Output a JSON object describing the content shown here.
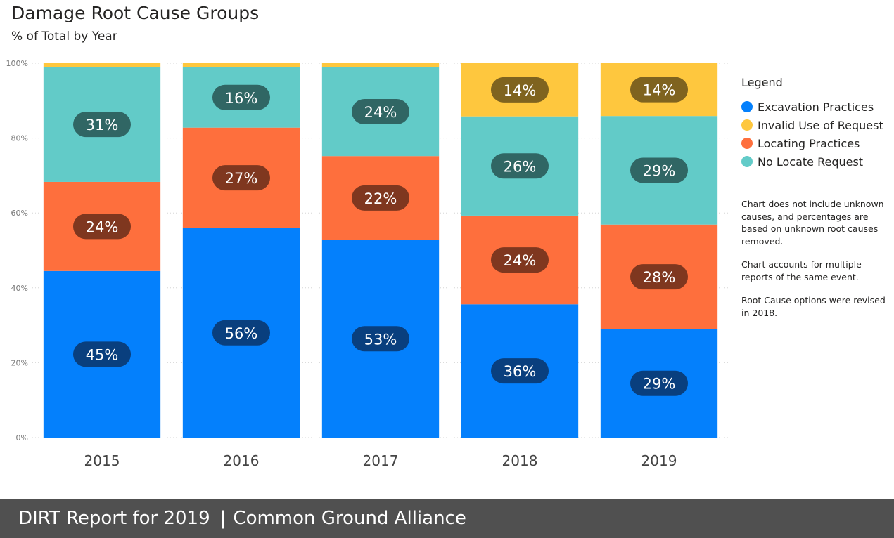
{
  "header": {
    "title": "Damage Root Cause Groups",
    "subtitle": "% of Total by Year"
  },
  "legend": {
    "title": "Legend",
    "items": [
      {
        "label": "Excavation Practices",
        "color": "#0480fc"
      },
      {
        "label": "Invalid Use of Request",
        "color": "#fec73e"
      },
      {
        "label": "Locating Practices",
        "color": "#fe6f3d"
      },
      {
        "label": "No Locate Request",
        "color": "#62cbc8"
      }
    ]
  },
  "notes": [
    "Chart does not include unknown causes, and percentages are based on unknown root causes removed.",
    "Chart accounts for multiple reports of the same event.",
    "Root Cause options were revised in 2018."
  ],
  "footer": {
    "report": "DIRT Report for 2019",
    "separator": "|",
    "org": "Common Ground Alliance"
  },
  "chart_data": {
    "type": "bar",
    "stacked": true,
    "title": "Damage Root Cause Groups",
    "subtitle": "% of Total by Year",
    "categories": [
      "2015",
      "2016",
      "2017",
      "2018",
      "2019"
    ],
    "ylim": [
      0,
      100
    ],
    "y_ticks": [
      "0%",
      "20%",
      "40%",
      "60%",
      "80%",
      "100%"
    ],
    "gridlines": true,
    "legend_position": "right",
    "series": [
      {
        "name": "Excavation Practices",
        "color": "#0480fc",
        "label_color": "#093f7e",
        "values": [
          44.5,
          56,
          52.8,
          35.6,
          29
        ],
        "labels": [
          "45%",
          "56%",
          "53%",
          "36%",
          "29%"
        ]
      },
      {
        "name": "Locating Practices",
        "color": "#fe6f3d",
        "label_color": "#7f371f",
        "values": [
          23.8,
          26.8,
          22.4,
          23.7,
          27.9
        ],
        "labels": [
          "24%",
          "27%",
          "22%",
          "24%",
          "28%"
        ]
      },
      {
        "name": "No Locate Request",
        "color": "#62cbc8",
        "label_color": "#306664",
        "values": [
          30.7,
          16.1,
          23.7,
          26.5,
          29
        ],
        "labels": [
          "31%",
          "16%",
          "24%",
          "26%",
          "29%"
        ]
      },
      {
        "name": "Invalid Use of Request",
        "color": "#fec73e",
        "label_color": "#7f631f",
        "values": [
          1,
          1.1,
          1.1,
          14.2,
          14.1
        ],
        "labels": [
          "",
          "",
          "",
          "14%",
          "14%"
        ]
      }
    ]
  }
}
